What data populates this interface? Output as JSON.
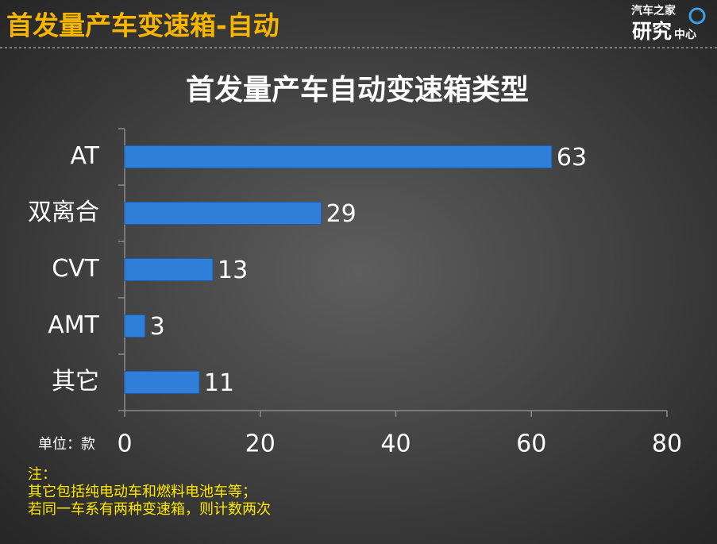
{
  "header": {
    "title": "首发量产车变速箱-自动",
    "logo_top": "汽车之家",
    "logo_big": "研究",
    "logo_small": "中心"
  },
  "chart_data": {
    "type": "bar",
    "orientation": "horizontal",
    "title": "首发量产车自动变速箱类型",
    "categories": [
      "AT",
      "双离合",
      "CVT",
      "AMT",
      "其它"
    ],
    "values": [
      63,
      29,
      13,
      3,
      11
    ],
    "color": "#2f7fd8",
    "xlim": [
      0,
      80
    ],
    "xticks": [
      0,
      20,
      40,
      60,
      80
    ],
    "unit_label": "单位：款",
    "notes": [
      "注：",
      "其它包括纯电动车和燃料电池车等；",
      "若同一车系有两种变速箱，则计数两次"
    ]
  }
}
